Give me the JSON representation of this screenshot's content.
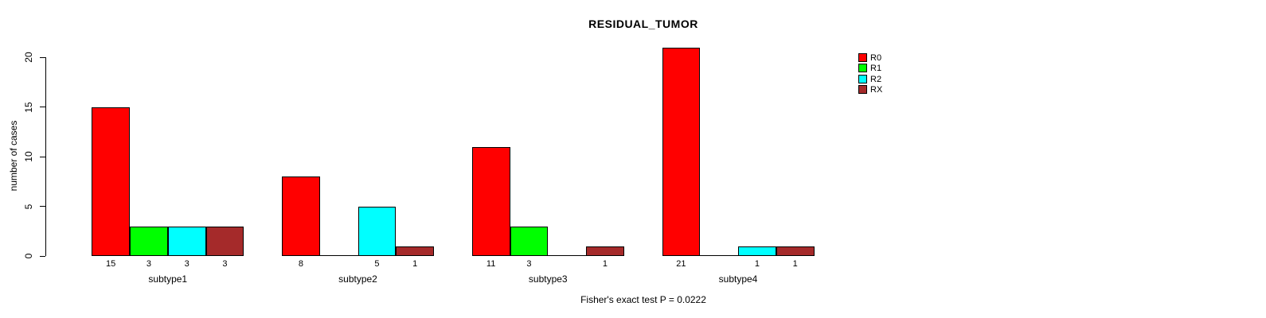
{
  "title": "RESIDUAL_TUMOR",
  "footer": "Fisher's exact test P = 0.0222",
  "chart_data": {
    "type": "bar",
    "grouped": true,
    "title": "RESIDUAL_TUMOR",
    "ylabel": "number of cases",
    "xlabel": "",
    "categories": [
      "subtype1",
      "subtype2",
      "subtype3",
      "subtype4"
    ],
    "series": [
      {
        "name": "R0",
        "color": "#FF0000",
        "values": [
          15,
          8,
          11,
          21
        ]
      },
      {
        "name": "R1",
        "color": "#00FF00",
        "values": [
          3,
          0,
          3,
          0
        ]
      },
      {
        "name": "R2",
        "color": "#00FFFF",
        "values": [
          3,
          5,
          0,
          1
        ]
      },
      {
        "name": "RX",
        "color": "#A52A2A",
        "values": [
          3,
          1,
          1,
          1
        ]
      }
    ],
    "yticks": [
      0,
      5,
      10,
      15,
      20
    ],
    "ylim": [
      0,
      21
    ],
    "grid": false,
    "legend_position": "top-right",
    "show_bar_value_labels": true,
    "zero_bars_drawn_as_baseline_segments": true,
    "annotation": "Fisher's exact test P = 0.0222",
    "axis_color": "#000000",
    "bar_border_color": "#000000",
    "background_color": "#FFFFFF"
  }
}
